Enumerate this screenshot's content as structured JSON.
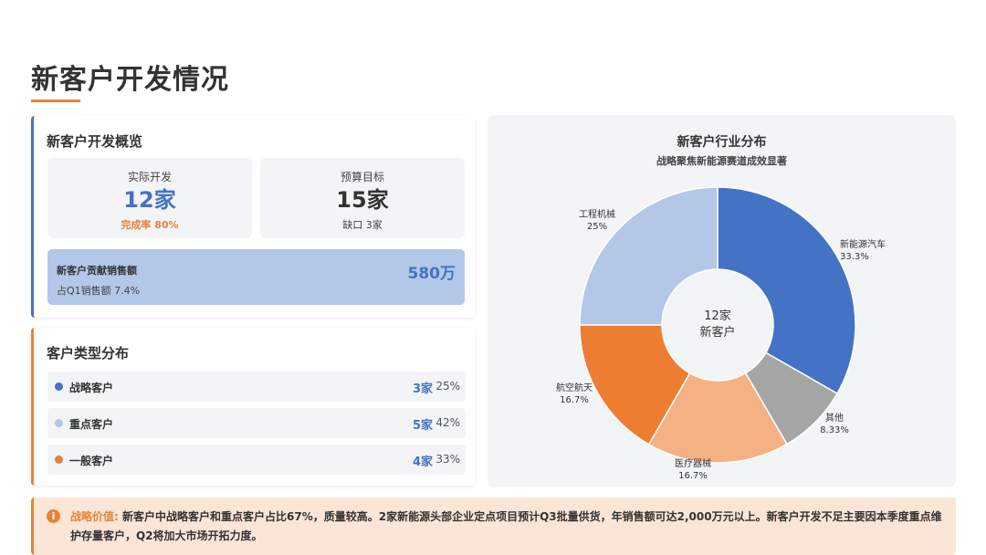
{
  "page": {
    "title": "新客户开发情况"
  },
  "overview": {
    "heading": "新客户开发概览",
    "actual": {
      "label": "实际开发",
      "value": "12家",
      "sub": "完成率 80%"
    },
    "target": {
      "label": "预算目标",
      "value": "15家",
      "sub": "缺口 3家"
    },
    "sales": {
      "label": "新客户贡献销售额",
      "sub": "占Q1销售额 7.4%",
      "value": "580万"
    }
  },
  "customer_types": {
    "heading": "客户类型分布",
    "rows": [
      {
        "label": "战略客户",
        "count": "3家",
        "pct": "25%",
        "color": "#4472c4"
      },
      {
        "label": "重点客户",
        "count": "5家",
        "pct": "42%",
        "color": "#b3c7e8"
      },
      {
        "label": "一般客户",
        "count": "4家",
        "pct": "33%",
        "color": "#e8823a"
      }
    ]
  },
  "chart_data": {
    "type": "pie",
    "title": "新客户行业分布",
    "subtitle": "战略聚焦新能源赛道成效显著",
    "center_text": [
      "12家",
      "新客户"
    ],
    "categories": [
      "新能源汽车",
      "其他",
      "医疗器械",
      "航空航天",
      "工程机械"
    ],
    "values": [
      33.3,
      8.33,
      16.7,
      16.7,
      25
    ],
    "value_labels": [
      "33.3%",
      "8.33%",
      "16.7%",
      "16.7%",
      "25%"
    ],
    "colors": [
      "#4472c4",
      "#a5a5a5",
      "#f4b183",
      "#ed7d31",
      "#b4c7e7"
    ],
    "donut": true
  },
  "note": {
    "icon": "info-icon",
    "key": "战略价值:",
    "text": "新客户中战略客户和重点客户占比67%，质量较高。2家新能源头部企业定点项目预计Q3批量供货，年销售额可达2,000万元以上。新客户开发不足主要因本季度重点维护存量客户，Q2将加大市场开拓力度。"
  }
}
